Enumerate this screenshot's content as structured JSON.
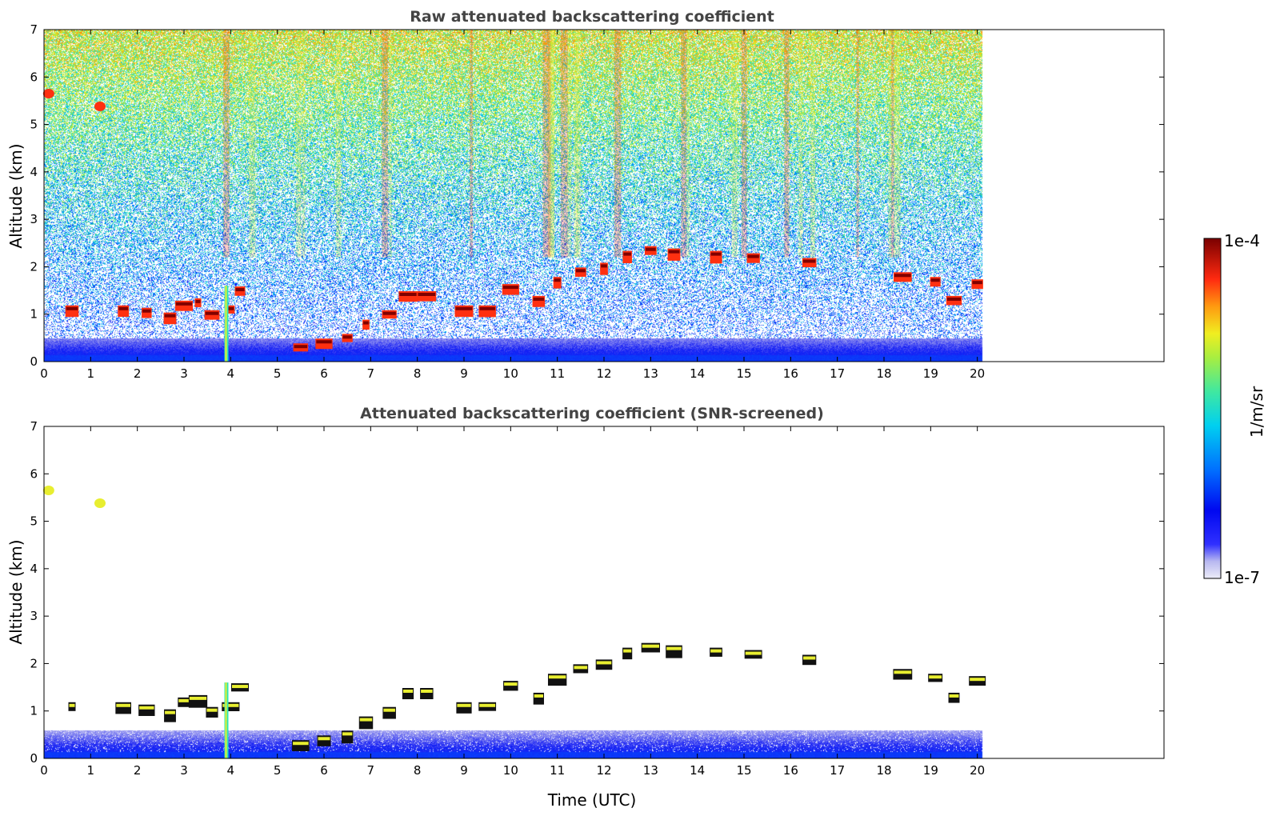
{
  "colors": {
    "very_low": "#e6e6f5",
    "low": "#0010f0",
    "mid_low": "#00a8ff",
    "mid": "#2ee8b4",
    "mid_high": "#e8ee30",
    "high": "#ff3010",
    "max": "#800000"
  },
  "colorbar": {
    "label": "1/m/sr",
    "max_label": "1e-4",
    "min_label": "1e-7",
    "scale": "log"
  },
  "chart_data": [
    {
      "type": "heatmap",
      "title": "Raw attenuated backscattering coefficient",
      "xlabel": "",
      "ylabel": "Altitude (km)",
      "xlim": [
        0,
        24
      ],
      "ylim": [
        0,
        7
      ],
      "xticks": [
        "0",
        "1",
        "2",
        "3",
        "4",
        "5",
        "6",
        "7",
        "8",
        "9",
        "10",
        "11",
        "12",
        "13",
        "14",
        "15",
        "16",
        "17",
        "18",
        "19",
        "20"
      ],
      "yticks": [
        "0",
        "1",
        "2",
        "3",
        "4",
        "5",
        "6",
        "7"
      ],
      "data_extent_x": [
        0,
        20.1
      ],
      "features": [
        {
          "kind": "surface_layer",
          "x": [
            0,
            20.1
          ],
          "y": [
            0,
            0.5
          ]
        },
        {
          "kind": "noise_gradient",
          "x": [
            0,
            20.1
          ],
          "y": [
            0.5,
            7
          ]
        },
        {
          "kind": "cloud_layer",
          "points": [
            [
              0.6,
              1.1
            ],
            [
              1.7,
              1.1
            ],
            [
              2.2,
              1.05
            ],
            [
              2.7,
              0.95
            ],
            [
              3.0,
              1.2
            ],
            [
              3.3,
              1.25
            ],
            [
              3.6,
              1.0
            ],
            [
              4.0,
              1.1
            ],
            [
              4.2,
              1.5
            ],
            [
              5.5,
              0.3
            ],
            [
              6.0,
              0.4
            ],
            [
              6.5,
              0.5
            ],
            [
              6.9,
              0.8
            ],
            [
              7.4,
              1.0
            ],
            [
              7.8,
              1.4
            ],
            [
              8.2,
              1.4
            ],
            [
              9.0,
              1.1
            ],
            [
              9.5,
              1.1
            ],
            [
              10.0,
              1.55
            ],
            [
              10.6,
              1.3
            ],
            [
              11.0,
              1.7
            ],
            [
              11.5,
              1.9
            ],
            [
              12.0,
              2.0
            ],
            [
              12.5,
              2.25
            ],
            [
              13.0,
              2.35
            ],
            [
              13.5,
              2.3
            ],
            [
              14.4,
              2.25
            ],
            [
              15.2,
              2.2
            ],
            [
              16.4,
              2.1
            ],
            [
              18.4,
              1.8
            ],
            [
              19.1,
              1.7
            ],
            [
              19.5,
              1.3
            ],
            [
              20.0,
              1.65
            ]
          ]
        },
        {
          "kind": "aerosol_spot",
          "points": [
            [
              0.1,
              5.65
            ],
            [
              1.2,
              5.38
            ]
          ]
        },
        {
          "kind": "vertical_streak",
          "x": 3.9,
          "y": [
            0,
            1.6
          ]
        }
      ]
    },
    {
      "type": "heatmap",
      "title": "Attenuated backscattering coefficient (SNR-screened)",
      "xlabel": "Time (UTC)",
      "ylabel": "Altitude (km)",
      "xlim": [
        0,
        24
      ],
      "ylim": [
        0,
        7
      ],
      "xticks": [
        "0",
        "1",
        "2",
        "3",
        "4",
        "5",
        "6",
        "7",
        "8",
        "9",
        "10",
        "11",
        "12",
        "13",
        "14",
        "15",
        "16",
        "17",
        "18",
        "19",
        "20"
      ],
      "yticks": [
        "0",
        "1",
        "2",
        "3",
        "4",
        "5",
        "6",
        "7"
      ],
      "data_extent_x": [
        0,
        20.1
      ],
      "features": [
        {
          "kind": "surface_layer",
          "x": [
            0,
            20.1
          ],
          "y": [
            0,
            0.6
          ]
        },
        {
          "kind": "cloud_layer",
          "points": [
            [
              0.6,
              1.1
            ],
            [
              1.7,
              1.1
            ],
            [
              2.2,
              1.05
            ],
            [
              2.7,
              0.95
            ],
            [
              3.0,
              1.2
            ],
            [
              3.3,
              1.25
            ],
            [
              3.6,
              1.0
            ],
            [
              4.0,
              1.1
            ],
            [
              4.2,
              1.5
            ],
            [
              5.5,
              0.3
            ],
            [
              6.0,
              0.4
            ],
            [
              6.5,
              0.5
            ],
            [
              6.9,
              0.8
            ],
            [
              7.4,
              1.0
            ],
            [
              7.8,
              1.4
            ],
            [
              8.2,
              1.4
            ],
            [
              9.0,
              1.1
            ],
            [
              9.5,
              1.1
            ],
            [
              10.0,
              1.55
            ],
            [
              10.6,
              1.3
            ],
            [
              11.0,
              1.7
            ],
            [
              11.5,
              1.9
            ],
            [
              12.0,
              2.0
            ],
            [
              12.5,
              2.25
            ],
            [
              13.0,
              2.35
            ],
            [
              13.5,
              2.3
            ],
            [
              14.4,
              2.25
            ],
            [
              15.2,
              2.2
            ],
            [
              16.4,
              2.1
            ],
            [
              18.4,
              1.8
            ],
            [
              19.1,
              1.7
            ],
            [
              19.5,
              1.3
            ],
            [
              20.0,
              1.65
            ]
          ]
        },
        {
          "kind": "aerosol_spot",
          "points": [
            [
              0.1,
              5.65
            ],
            [
              1.2,
              5.38
            ]
          ]
        },
        {
          "kind": "vertical_streak",
          "x": 3.9,
          "y": [
            0,
            1.6
          ]
        }
      ]
    }
  ]
}
